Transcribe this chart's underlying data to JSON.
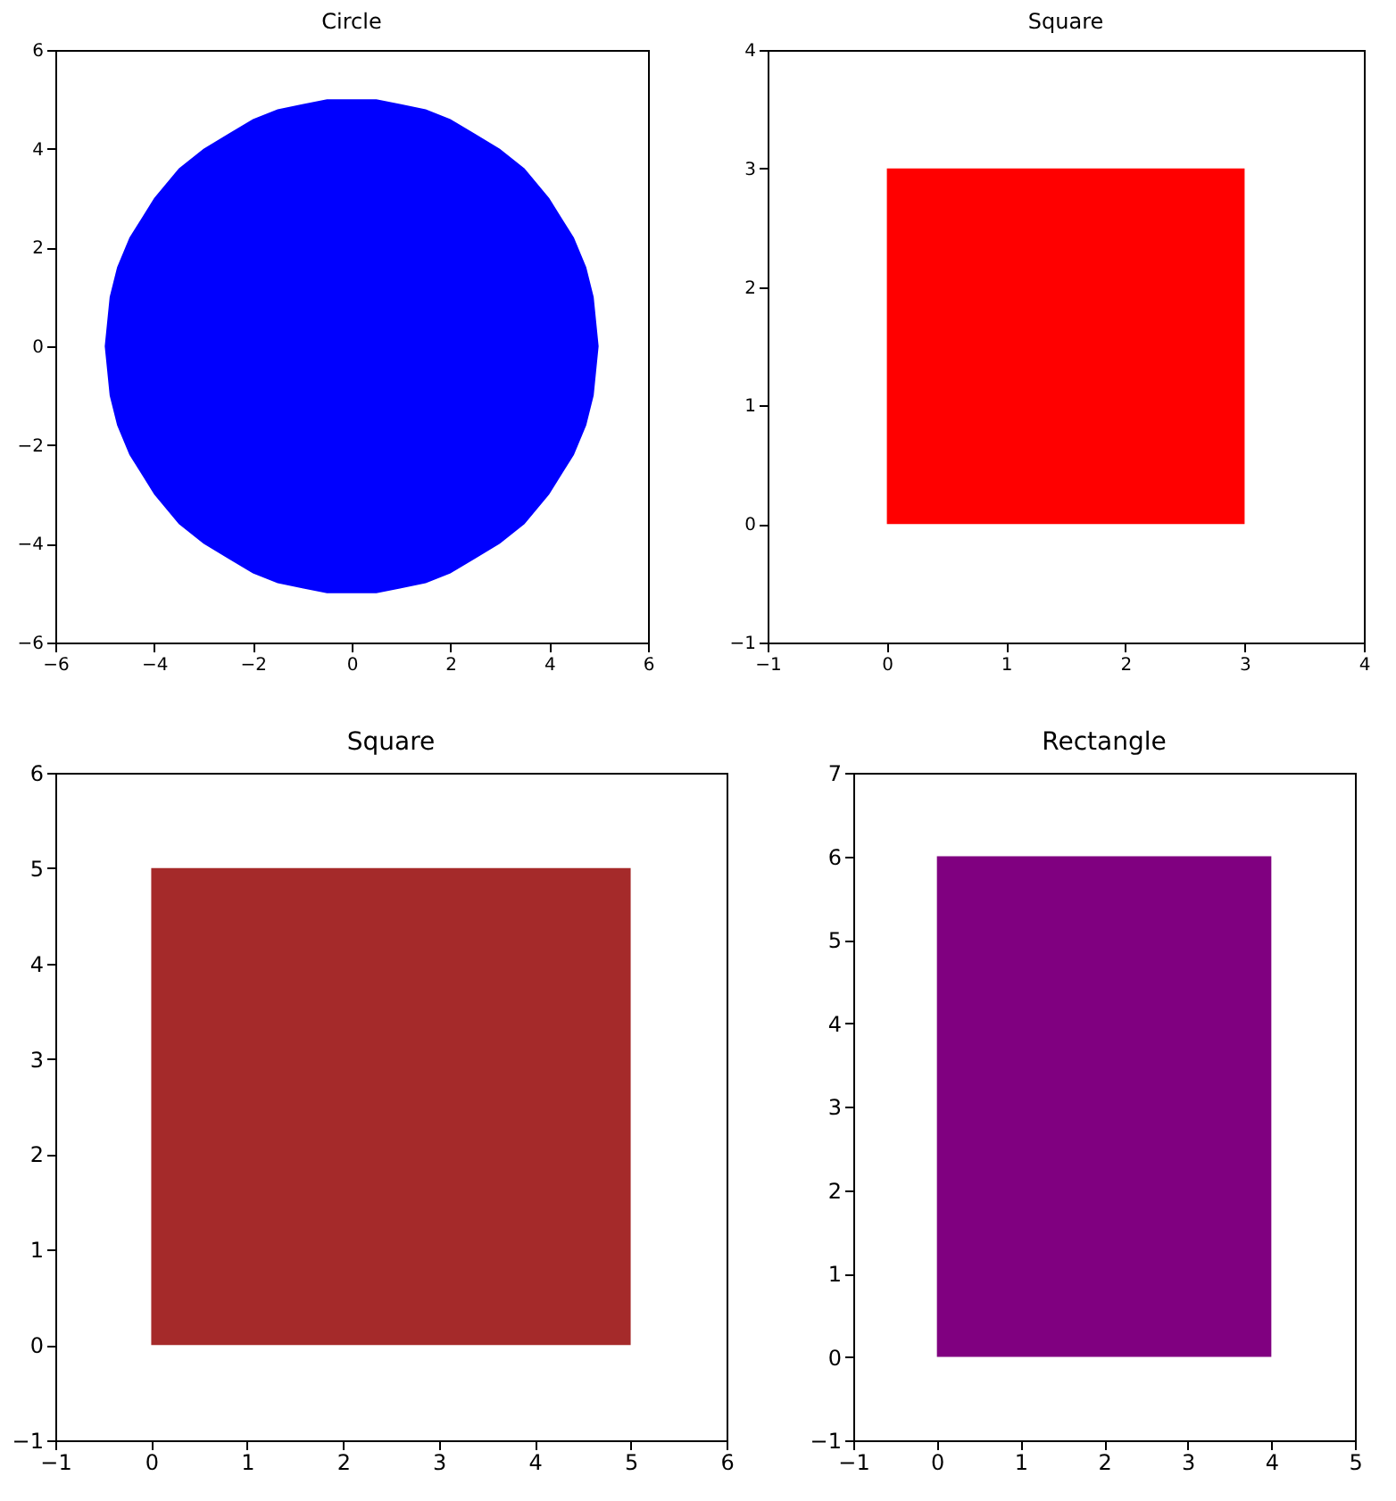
{
  "chart_data": [
    {
      "type": "area",
      "title": "Circle",
      "xlim": [
        -6,
        6
      ],
      "ylim": [
        -6,
        6
      ],
      "xticks": [
        -6,
        -4,
        -2,
        0,
        2,
        4,
        6
      ],
      "yticks": [
        -6,
        -4,
        -2,
        0,
        2,
        4,
        6
      ],
      "series": [
        {
          "color": "#0000ff",
          "x": [
            -5,
            -4.9,
            -4.75,
            -4.5,
            -4.25,
            -4,
            -3.5,
            -3,
            -2.5,
            -2,
            -1.5,
            -1,
            -0.5,
            0,
            0.5,
            1,
            1.5,
            2,
            2.5,
            3,
            3.5,
            4,
            4.25,
            4.5,
            4.75,
            4.9,
            5
          ],
          "values": [
            0,
            1.0,
            1.6,
            2.2,
            2.6,
            3.0,
            3.6,
            4.0,
            4.3,
            4.6,
            4.8,
            4.9,
            5.0,
            5.0,
            5.0,
            4.9,
            4.8,
            4.6,
            4.3,
            4.0,
            3.6,
            3.0,
            2.6,
            2.2,
            1.6,
            1.0,
            0
          ]
        },
        {
          "color": "#0000ff",
          "x": [
            -5,
            -4.9,
            -4.75,
            -4.5,
            -4.25,
            -4,
            -3.5,
            -3,
            -2.5,
            -2,
            -1.5,
            -1,
            -0.5,
            0,
            0.5,
            1,
            1.5,
            2,
            2.5,
            3,
            3.5,
            4,
            4.25,
            4.5,
            4.75,
            4.9,
            5
          ],
          "values": [
            0,
            -1.0,
            -1.6,
            -2.2,
            -2.6,
            -3.0,
            -3.6,
            -4.0,
            -4.3,
            -4.6,
            -4.8,
            -4.9,
            -5.0,
            -5.0,
            -5.0,
            -4.9,
            -4.8,
            -4.6,
            -4.3,
            -4.0,
            -3.6,
            -3.0,
            -2.6,
            -2.2,
            -1.6,
            -1.0,
            0
          ]
        }
      ]
    },
    {
      "type": "area",
      "title": "Square",
      "xlim": [
        -1,
        4
      ],
      "ylim": [
        -1,
        4
      ],
      "xticks": [
        -1,
        0,
        1,
        2,
        3,
        4
      ],
      "yticks": [
        -1,
        0,
        1,
        2,
        3,
        4
      ],
      "series": [
        {
          "color": "#ff0000",
          "x": [
            0,
            3
          ],
          "values": [
            3,
            3
          ]
        }
      ]
    },
    {
      "type": "area",
      "title": "Square",
      "xlim": [
        -1,
        6
      ],
      "ylim": [
        -1,
        6
      ],
      "xticks": [
        -1,
        0,
        1,
        2,
        3,
        4,
        5,
        6
      ],
      "yticks": [
        -1,
        0,
        1,
        2,
        3,
        4,
        5,
        6
      ],
      "series": [
        {
          "color": "#a52a2a",
          "x": [
            0,
            5
          ],
          "values": [
            5,
            5
          ]
        }
      ]
    },
    {
      "type": "area",
      "title": "Rectangle",
      "xlim": [
        -1,
        5
      ],
      "ylim": [
        -1,
        7
      ],
      "xticks": [
        -1,
        0,
        1,
        2,
        3,
        4,
        5
      ],
      "yticks": [
        -1,
        0,
        1,
        2,
        3,
        4,
        5,
        6,
        7
      ],
      "series": [
        {
          "color": "#800080",
          "x": [
            0,
            4
          ],
          "values": [
            6,
            6
          ]
        }
      ]
    }
  ]
}
